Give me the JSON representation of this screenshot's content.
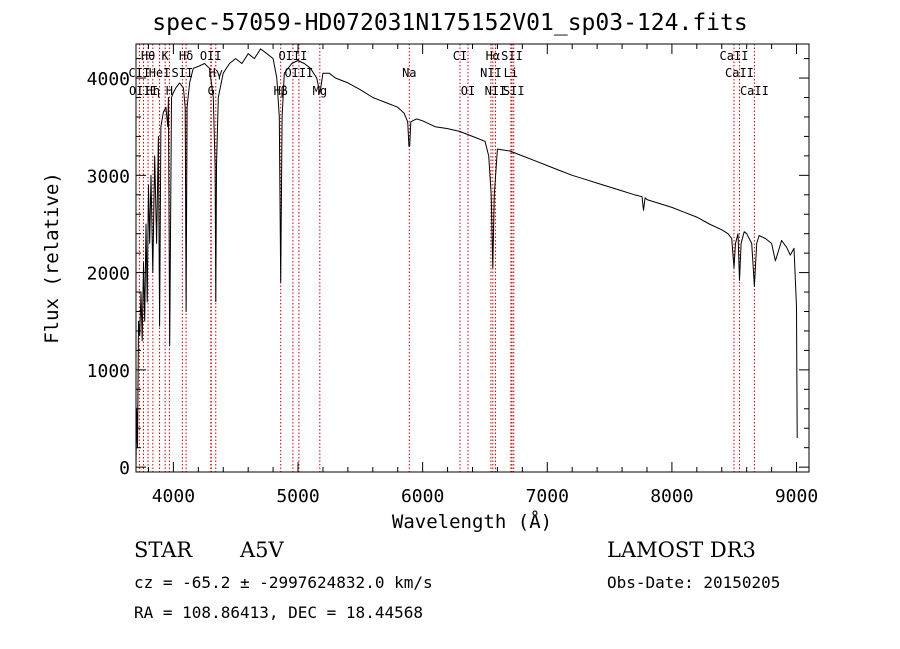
{
  "title": "spec-57059-HD072031N175152V01_sp03-124.fits",
  "info": {
    "object_type": "STAR",
    "subclass": "A5V",
    "survey": "LAMOST DR3",
    "cz": "cz = -65.2 ± -2997624832.0 km/s",
    "obs_date": "Obs-Date: 20150205",
    "coords": "RA = 108.86413, DEC =  18.44568"
  },
  "chart_data": {
    "type": "line",
    "title": "spec-57059-HD072031N175152V01_sp03-124.fits",
    "xlabel": "Wavelength (Å)",
    "ylabel": "Flux (relative)",
    "xlim": [
      3700,
      9100
    ],
    "ylim": [
      -50,
      4350
    ],
    "x_ticks": [
      4000,
      5000,
      6000,
      7000,
      8000,
      9000
    ],
    "y_ticks": [
      0,
      1000,
      2000,
      3000,
      4000
    ],
    "series": [
      {
        "name": "spectrum",
        "points": [
          [
            3700,
            0
          ],
          [
            3705,
            600
          ],
          [
            3712,
            200
          ],
          [
            3720,
            1500
          ],
          [
            3730,
            1350
          ],
          [
            3740,
            1800
          ],
          [
            3750,
            1300
          ],
          [
            3760,
            2100
          ],
          [
            3770,
            1500
          ],
          [
            3780,
            2500
          ],
          [
            3790,
            1700
          ],
          [
            3800,
            2900
          ],
          [
            3810,
            2300
          ],
          [
            3820,
            3000
          ],
          [
            3835,
            2000
          ],
          [
            3850,
            3200
          ],
          [
            3865,
            2300
          ],
          [
            3880,
            3400
          ],
          [
            3889,
            1450
          ],
          [
            3900,
            3500
          ],
          [
            3920,
            3650
          ],
          [
            3940,
            3700
          ],
          [
            3955,
            3500
          ],
          [
            3960,
            3800
          ],
          [
            3970,
            1250
          ],
          [
            3985,
            3800
          ],
          [
            4000,
            3850
          ],
          [
            4020,
            3900
          ],
          [
            4050,
            3950
          ],
          [
            4080,
            3900
          ],
          [
            4095,
            3700
          ],
          [
            4102,
            1600
          ],
          [
            4110,
            3700
          ],
          [
            4130,
            3950
          ],
          [
            4160,
            4100
          ],
          [
            4200,
            4120
          ],
          [
            4250,
            4150
          ],
          [
            4290,
            4100
          ],
          [
            4320,
            3800
          ],
          [
            4335,
            3100
          ],
          [
            4340,
            1700
          ],
          [
            4346,
            3100
          ],
          [
            4360,
            3800
          ],
          [
            4400,
            4050
          ],
          [
            4450,
            4150
          ],
          [
            4500,
            4200
          ],
          [
            4550,
            4150
          ],
          [
            4600,
            4250
          ],
          [
            4650,
            4200
          ],
          [
            4700,
            4300
          ],
          [
            4750,
            4250
          ],
          [
            4800,
            4200
          ],
          [
            4830,
            4000
          ],
          [
            4850,
            3600
          ],
          [
            4861,
            1900
          ],
          [
            4872,
            3600
          ],
          [
            4890,
            4050
          ],
          [
            4920,
            4100
          ],
          [
            4950,
            4150
          ],
          [
            5000,
            4180
          ],
          [
            5050,
            4150
          ],
          [
            5100,
            4100
          ],
          [
            5150,
            4000
          ],
          [
            5167,
            3900
          ],
          [
            5175,
            3850
          ],
          [
            5183,
            3900
          ],
          [
            5200,
            4050
          ],
          [
            5250,
            4050
          ],
          [
            5300,
            4000
          ],
          [
            5400,
            3950
          ],
          [
            5500,
            3880
          ],
          [
            5600,
            3800
          ],
          [
            5700,
            3750
          ],
          [
            5800,
            3700
          ],
          [
            5850,
            3640
          ],
          [
            5880,
            3550
          ],
          [
            5890,
            3300
          ],
          [
            5896,
            3300
          ],
          [
            5905,
            3550
          ],
          [
            5950,
            3580
          ],
          [
            6000,
            3560
          ],
          [
            6100,
            3500
          ],
          [
            6200,
            3480
          ],
          [
            6300,
            3450
          ],
          [
            6400,
            3400
          ],
          [
            6500,
            3350
          ],
          [
            6530,
            3200
          ],
          [
            6550,
            2800
          ],
          [
            6563,
            2050
          ],
          [
            6575,
            2800
          ],
          [
            6600,
            3270
          ],
          [
            6700,
            3250
          ],
          [
            6800,
            3200
          ],
          [
            6900,
            3150
          ],
          [
            7000,
            3100
          ],
          [
            7100,
            3050
          ],
          [
            7200,
            3000
          ],
          [
            7300,
            2960
          ],
          [
            7400,
            2920
          ],
          [
            7500,
            2880
          ],
          [
            7600,
            2840
          ],
          [
            7700,
            2800
          ],
          [
            7760,
            2780
          ],
          [
            7772,
            2640
          ],
          [
            7785,
            2770
          ],
          [
            7800,
            2750
          ],
          [
            7900,
            2710
          ],
          [
            8000,
            2670
          ],
          [
            8100,
            2620
          ],
          [
            8200,
            2570
          ],
          [
            8300,
            2500
          ],
          [
            8400,
            2440
          ],
          [
            8450,
            2400
          ],
          [
            8480,
            2350
          ],
          [
            8498,
            2050
          ],
          [
            8510,
            2300
          ],
          [
            8530,
            2400
          ],
          [
            8542,
            1920
          ],
          [
            8555,
            2300
          ],
          [
            8580,
            2420
          ],
          [
            8600,
            2400
          ],
          [
            8640,
            2300
          ],
          [
            8662,
            1860
          ],
          [
            8680,
            2300
          ],
          [
            8700,
            2380
          ],
          [
            8750,
            2350
          ],
          [
            8800,
            2300
          ],
          [
            8830,
            2120
          ],
          [
            8850,
            2200
          ],
          [
            8880,
            2330
          ],
          [
            8920,
            2260
          ],
          [
            8950,
            2180
          ],
          [
            8980,
            2250
          ],
          [
            9000,
            1650
          ],
          [
            9005,
            300
          ]
        ]
      }
    ],
    "lines": [
      {
        "label": "Hθ",
        "wave": 3797,
        "row": 0
      },
      {
        "label": "K",
        "wave": 3934,
        "row": 0
      },
      {
        "label": "Hδ",
        "wave": 4102,
        "row": 0
      },
      {
        "label": "OII",
        "wave": 4300,
        "row": 0
      },
      {
        "label": "OIII",
        "wave": 4959,
        "row": 0
      },
      {
        "label": "CI",
        "wave": 6300,
        "row": 0
      },
      {
        "label": "Hα",
        "wave": 6563,
        "row": 0
      },
      {
        "label": "SII",
        "wave": 6717,
        "row": 0
      },
      {
        "label": "CaII",
        "wave": 8498,
        "row": 0
      },
      {
        "label": "CII",
        "wave": 3727,
        "row": 1
      },
      {
        "label": "HeI",
        "wave": 3889,
        "row": 1
      },
      {
        "label": "SII",
        "wave": 4072,
        "row": 1
      },
      {
        "label": "Hγ",
        "wave": 4340,
        "row": 1
      },
      {
        "label": "OIII",
        "wave": 5007,
        "row": 1
      },
      {
        "label": "Na",
        "wave": 5893,
        "row": 1
      },
      {
        "label": "NII",
        "wave": 6548,
        "row": 1
      },
      {
        "label": "Li",
        "wave": 6708,
        "row": 1
      },
      {
        "label": "CaII",
        "wave": 8542,
        "row": 1
      },
      {
        "label": "OIII",
        "wave": 3760,
        "row": 2
      },
      {
        "label": "Hη",
        "wave": 3835,
        "row": 2
      },
      {
        "label": "H",
        "wave": 3968,
        "row": 2
      },
      {
        "label": "G",
        "wave": 4304,
        "row": 2
      },
      {
        "label": "Hβ",
        "wave": 4861,
        "row": 2
      },
      {
        "label": "Mg",
        "wave": 5175,
        "row": 2
      },
      {
        "label": "OI",
        "wave": 6364,
        "row": 2
      },
      {
        "label": "NII",
        "wave": 6584,
        "row": 2
      },
      {
        "label": "SII",
        "wave": 6731,
        "row": 2
      },
      {
        "label": "CaII",
        "wave": 8662,
        "row": 2
      }
    ]
  }
}
